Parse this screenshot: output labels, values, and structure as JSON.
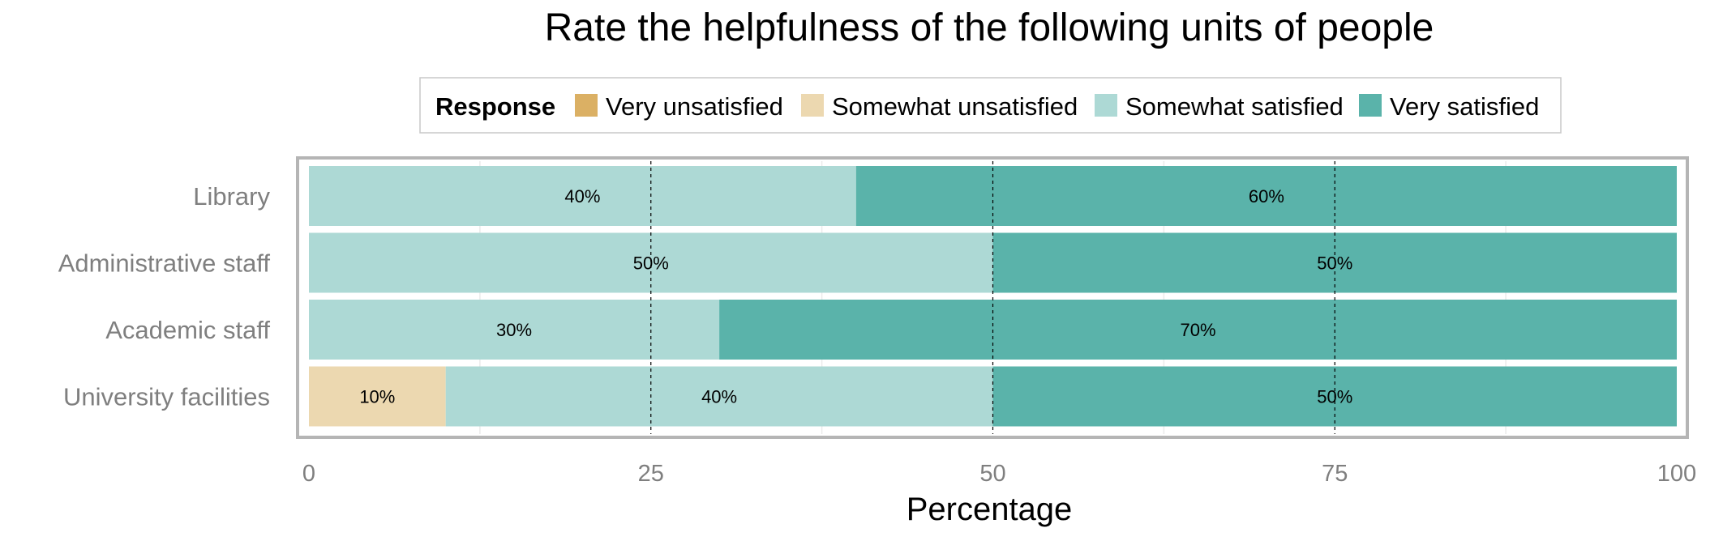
{
  "chart_data": {
    "type": "bar",
    "orientation": "horizontal",
    "stacked": true,
    "title": "Rate the helpfulness of the following units of people",
    "xlabel": "Percentage",
    "ylabel": "",
    "xlim": [
      0,
      100
    ],
    "xticks": [
      0,
      25,
      50,
      75,
      100
    ],
    "xtick_labels": [
      "0",
      "25",
      "50",
      "75",
      "100"
    ],
    "grid": true,
    "legend": {
      "title": "Response",
      "position": "top",
      "entries": [
        "Very unsatisfied",
        "Somewhat unsatisfied",
        "Somewhat satisfied",
        "Very satisfied"
      ]
    },
    "categories": [
      "Library",
      "Administrative staff",
      "Academic staff",
      "University facilities"
    ],
    "series": [
      {
        "name": "Very unsatisfied",
        "color": "#dbb064",
        "values": [
          0,
          0,
          0,
          0
        ],
        "labels": [
          "",
          "",
          "",
          ""
        ]
      },
      {
        "name": "Somewhat unsatisfied",
        "color": "#ecd8b0",
        "values": [
          0,
          0,
          0,
          10
        ],
        "labels": [
          "",
          "",
          "",
          "10%"
        ]
      },
      {
        "name": "Somewhat satisfied",
        "color": "#add9d5",
        "values": [
          40,
          50,
          30,
          40
        ],
        "labels": [
          "40%",
          "50%",
          "30%",
          "40%"
        ]
      },
      {
        "name": "Very satisfied",
        "color": "#5ab3aa",
        "values": [
          60,
          50,
          70,
          50
        ],
        "labels": [
          "60%",
          "50%",
          "70%",
          "50%"
        ]
      }
    ]
  }
}
